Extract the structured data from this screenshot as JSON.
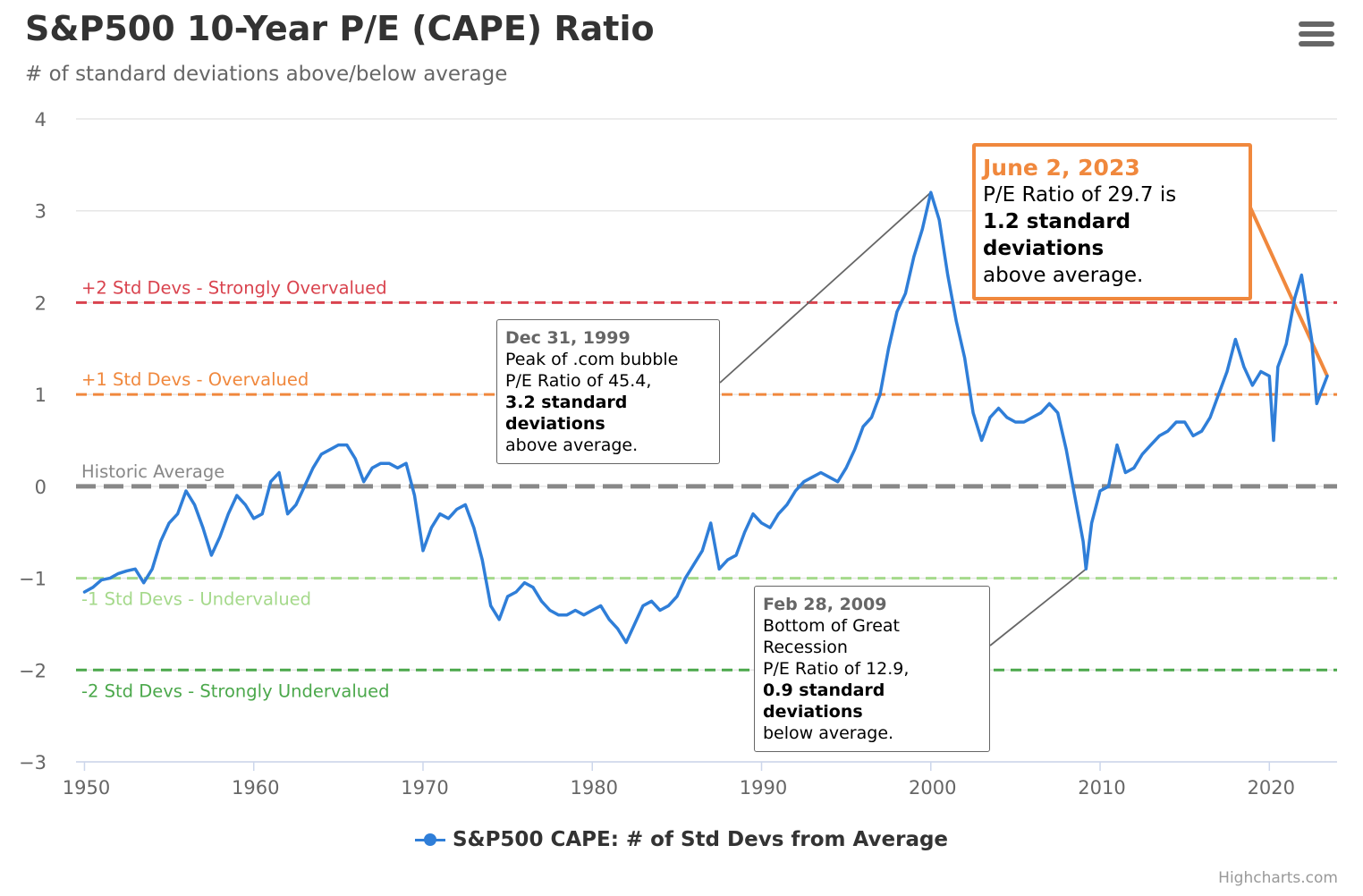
{
  "title": "S&P500 10-Year P/E (CAPE) Ratio",
  "subtitle": "# of standard deviations above/below average",
  "menu_icon": "hamburger-menu-icon",
  "credits": "Highcharts.com",
  "legend": {
    "label": "S&P500 CAPE: # of Std Devs from Average",
    "color": "#2f7ed8"
  },
  "plot_lines": [
    {
      "value": 2,
      "label": "+2 Std Devs - Strongly Overvalued",
      "color": "#d9434e",
      "label_pos": "above"
    },
    {
      "value": 1,
      "label": "+1 Std Devs - Overvalued",
      "color": "#f0883d",
      "label_pos": "above"
    },
    {
      "value": 0,
      "label": "Historic Average",
      "color": "#888888",
      "label_pos": "above"
    },
    {
      "value": -1,
      "label": "-1 Std Devs - Undervalued",
      "color": "#a5d98b",
      "label_pos": "below"
    },
    {
      "value": -2,
      "label": "-2 Std Devs - Strongly Undervalued",
      "color": "#4ba84b",
      "label_pos": "below"
    }
  ],
  "annotations": {
    "dotcom": {
      "date": "Dec 31, 1999",
      "line1": "Peak of .com bubble",
      "line2": "P/E Ratio of 45.4,",
      "bold": "3.2 standard deviations",
      "line3": "above average.",
      "point": {
        "x": 2000.0,
        "y": 3.2
      }
    },
    "recession": {
      "date": "Feb 28, 2009",
      "line1": "Bottom of Great Recession",
      "line2": "P/E Ratio of 12.9,",
      "bold": "0.9 standard deviations",
      "line3": "below average.",
      "point": {
        "x": 2009.17,
        "y": -0.9
      }
    },
    "current": {
      "date": "June 2, 2023",
      "line1": "P/E Ratio of 29.7 is",
      "bold": "1.2 standard deviations",
      "line3": "above average.",
      "point": {
        "x": 2023.42,
        "y": 1.2
      },
      "color": "#f0883d"
    }
  },
  "chart_data": {
    "type": "line",
    "title": "S&P500 10-Year P/E (CAPE) Ratio",
    "subtitle": "# of standard deviations above/below average",
    "xlabel": "",
    "ylabel": "",
    "xlim": [
      1949.5,
      2024
    ],
    "ylim": [
      -3,
      4
    ],
    "x_ticks": [
      1950,
      1960,
      1970,
      1980,
      1990,
      2000,
      2010,
      2020
    ],
    "y_ticks": [
      -3,
      -2,
      -1,
      0,
      1,
      2,
      3,
      4
    ],
    "grid": true,
    "legend_position": "bottom-center",
    "series": [
      {
        "name": "S&P500 CAPE: # of Std Devs from Average",
        "color": "#2f7ed8",
        "x": [
          1950.0,
          1950.5,
          1951.0,
          1951.5,
          1952.0,
          1952.5,
          1953.0,
          1953.5,
          1954.0,
          1954.5,
          1955.0,
          1955.5,
          1956.0,
          1956.5,
          1957.0,
          1957.5,
          1958.0,
          1958.5,
          1959.0,
          1959.5,
          1960.0,
          1960.5,
          1961.0,
          1961.5,
          1962.0,
          1962.5,
          1963.0,
          1963.5,
          1964.0,
          1964.5,
          1965.0,
          1965.5,
          1966.0,
          1966.5,
          1967.0,
          1967.5,
          1968.0,
          1968.5,
          1969.0,
          1969.5,
          1970.0,
          1970.5,
          1971.0,
          1971.5,
          1972.0,
          1972.5,
          1973.0,
          1973.5,
          1974.0,
          1974.5,
          1975.0,
          1975.5,
          1976.0,
          1976.5,
          1977.0,
          1977.5,
          1978.0,
          1978.5,
          1979.0,
          1979.5,
          1980.0,
          1980.5,
          1981.0,
          1981.5,
          1982.0,
          1982.5,
          1983.0,
          1983.5,
          1984.0,
          1984.5,
          1985.0,
          1985.5,
          1986.0,
          1986.5,
          1987.0,
          1987.5,
          1988.0,
          1988.5,
          1989.0,
          1989.5,
          1990.0,
          1990.5,
          1991.0,
          1991.5,
          1992.0,
          1992.5,
          1993.0,
          1993.5,
          1994.0,
          1994.5,
          1995.0,
          1995.5,
          1996.0,
          1996.5,
          1997.0,
          1997.5,
          1998.0,
          1998.5,
          1999.0,
          1999.5,
          2000.0,
          2000.5,
          2001.0,
          2001.5,
          2002.0,
          2002.5,
          2003.0,
          2003.5,
          2004.0,
          2004.5,
          2005.0,
          2005.5,
          2006.0,
          2006.5,
          2007.0,
          2007.5,
          2008.0,
          2008.5,
          2009.0,
          2009.17,
          2009.5,
          2010.0,
          2010.5,
          2011.0,
          2011.5,
          2012.0,
          2012.5,
          2013.0,
          2013.5,
          2014.0,
          2014.5,
          2015.0,
          2015.5,
          2016.0,
          2016.5,
          2017.0,
          2017.5,
          2018.0,
          2018.5,
          2019.0,
          2019.5,
          2020.0,
          2020.25,
          2020.5,
          2021.0,
          2021.5,
          2021.9,
          2022.5,
          2022.8,
          2023.0,
          2023.42
        ],
        "values": [
          -1.15,
          -1.1,
          -1.02,
          -1.0,
          -0.95,
          -0.92,
          -0.9,
          -1.05,
          -0.9,
          -0.6,
          -0.4,
          -0.3,
          -0.05,
          -0.2,
          -0.45,
          -0.75,
          -0.55,
          -0.3,
          -0.1,
          -0.2,
          -0.35,
          -0.3,
          0.05,
          0.15,
          -0.3,
          -0.2,
          0.0,
          0.2,
          0.35,
          0.4,
          0.45,
          0.45,
          0.3,
          0.05,
          0.2,
          0.25,
          0.25,
          0.2,
          0.25,
          -0.1,
          -0.7,
          -0.45,
          -0.3,
          -0.35,
          -0.25,
          -0.2,
          -0.45,
          -0.8,
          -1.3,
          -1.45,
          -1.2,
          -1.15,
          -1.05,
          -1.1,
          -1.25,
          -1.35,
          -1.4,
          -1.4,
          -1.35,
          -1.4,
          -1.35,
          -1.3,
          -1.45,
          -1.55,
          -1.7,
          -1.5,
          -1.3,
          -1.25,
          -1.35,
          -1.3,
          -1.2,
          -1.0,
          -0.85,
          -0.7,
          -0.4,
          -0.9,
          -0.8,
          -0.75,
          -0.5,
          -0.3,
          -0.4,
          -0.45,
          -0.3,
          -0.2,
          -0.05,
          0.05,
          0.1,
          0.15,
          0.1,
          0.05,
          0.2,
          0.4,
          0.65,
          0.75,
          1.0,
          1.5,
          1.9,
          2.1,
          2.5,
          2.8,
          3.2,
          2.9,
          2.3,
          1.8,
          1.4,
          0.8,
          0.5,
          0.75,
          0.85,
          0.75,
          0.7,
          0.7,
          0.75,
          0.8,
          0.9,
          0.8,
          0.4,
          -0.1,
          -0.6,
          -0.9,
          -0.4,
          -0.05,
          0.0,
          0.45,
          0.15,
          0.2,
          0.35,
          0.45,
          0.55,
          0.6,
          0.7,
          0.7,
          0.55,
          0.6,
          0.75,
          1.0,
          1.25,
          1.6,
          1.3,
          1.1,
          1.25,
          1.2,
          0.5,
          1.3,
          1.55,
          2.05,
          2.3,
          1.6,
          0.9,
          1.0,
          1.2
        ]
      }
    ]
  }
}
